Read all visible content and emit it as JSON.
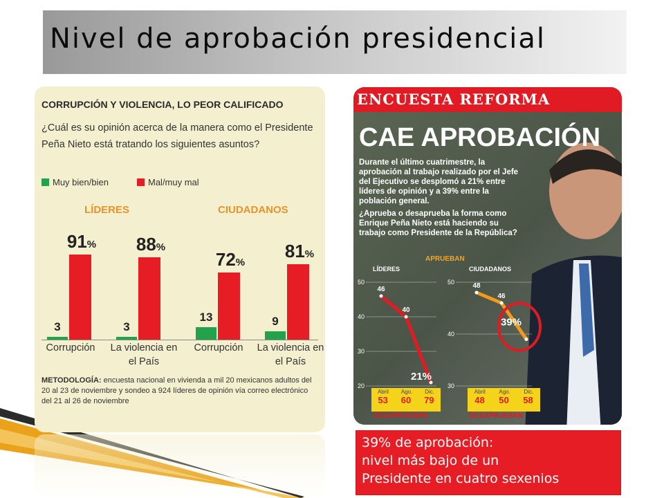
{
  "slide": {
    "title": "Nivel de aprobación presidencial",
    "caption": {
      "line1": "39% de aprobación:",
      "line2": "nivel más bajo de un",
      "line3": "Presidente en cuatro sexenios"
    }
  },
  "left_chart": {
    "heading": "CORRUPCIÓN Y VIOLENCIA, LO PEOR CALIFICADO",
    "question": "¿Cuál es su opinión acerca de la manera como el Presidente Peña Nieto está tratando los siguientes asuntos?",
    "legend": [
      {
        "label": "Muy bien/bien",
        "color": "#22a24a"
      },
      {
        "label": "Mal/muy mal",
        "color": "#e61d25"
      }
    ],
    "groups": [
      "LÍDERES",
      "CIUDADANOS"
    ],
    "methodology_label": "METODOLOGÍA:",
    "methodology": "encuesta nacional en vivienda a mil 20 mexicanos adultos del 20 al 23 de noviembre y sondeo a 924 líderes de opinión vía correo electrónico del 21 al 26 de noviembre"
  },
  "chart_data": [
    {
      "type": "bar",
      "title": "CORRUPCIÓN Y VIOLENCIA, LO PEOR CALIFICADO",
      "categories": [
        "Corrupción",
        "La violencia en el País",
        "Corrupción",
        "La violencia en el País"
      ],
      "groups": [
        "LÍDERES",
        "LÍDERES",
        "CIUDADANOS",
        "CIUDADANOS"
      ],
      "series": [
        {
          "name": "Muy bien/bien",
          "values": [
            3,
            3,
            13,
            9
          ]
        },
        {
          "name": "Mal/muy mal",
          "values": [
            91,
            88,
            72,
            81
          ]
        }
      ],
      "ylim": [
        0,
        100
      ]
    },
    {
      "type": "line",
      "title": "LÍDERES",
      "x": [
        "Abril",
        "Ago.",
        "Dic."
      ],
      "series": [
        {
          "name": "APRUEBAN",
          "values": [
            46,
            40,
            21
          ]
        }
      ],
      "desaprueban": [
        53,
        60,
        79
      ],
      "ylim": [
        20,
        50
      ],
      "yticks": [
        20,
        30,
        40,
        50
      ]
    },
    {
      "type": "line",
      "title": "CIUDADANOS",
      "x": [
        "Abril",
        "Ago.",
        "Dic."
      ],
      "series": [
        {
          "name": "APRUEBAN",
          "values": [
            48,
            46,
            39
          ]
        }
      ],
      "desaprueban": [
        48,
        50,
        58
      ],
      "ylim": [
        30,
        50
      ],
      "yticks": [
        30,
        40,
        50
      ]
    }
  ],
  "right_panel": {
    "banner": "ENCUESTA REFORMA",
    "headline": "CAE APROBACIÓN",
    "text1": "Durante el último cuatrimestre, la aprobación al trabajo realizado por el Jefe del Ejecutivo se desplomó a 21% entre líderes de opinión y a 39% entre la población general.",
    "text2": "¿Aprueba o desaprueba la forma como Enrique Peña Nieto está haciendo su trabajo como Presidente de la República?",
    "aprueban_label": "APRUEBAN",
    "desaprueban_label": "DESAPRUEBAN",
    "lideres_label": "LÍDERES",
    "ciudadanos_label": "CIUDADANOS"
  }
}
